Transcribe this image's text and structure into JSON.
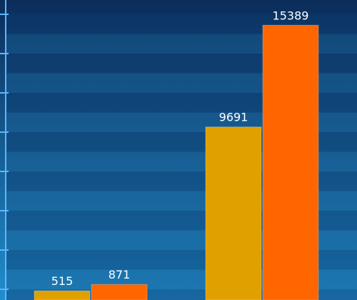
{
  "colors": {
    "bg_top": "#0b2d5a",
    "bg_bottom": "#1f8dcc",
    "band_dark": "#0d3a6c",
    "band_light": "#1b5f95",
    "axis": "#5fb6ff",
    "series_a": "#e0a000",
    "series_b": "#ff6600",
    "label": "#ffffff"
  },
  "chart_data": {
    "type": "bar",
    "categories": [
      "",
      ""
    ],
    "series": [
      {
        "values": [
          515,
          9691
        ]
      },
      {
        "values": [
          871,
          15389
        ]
      }
    ],
    "title": "",
    "xlabel": "",
    "ylabel": "",
    "ylim": [
      0,
      16000
    ],
    "grid": true,
    "legend": "none"
  }
}
